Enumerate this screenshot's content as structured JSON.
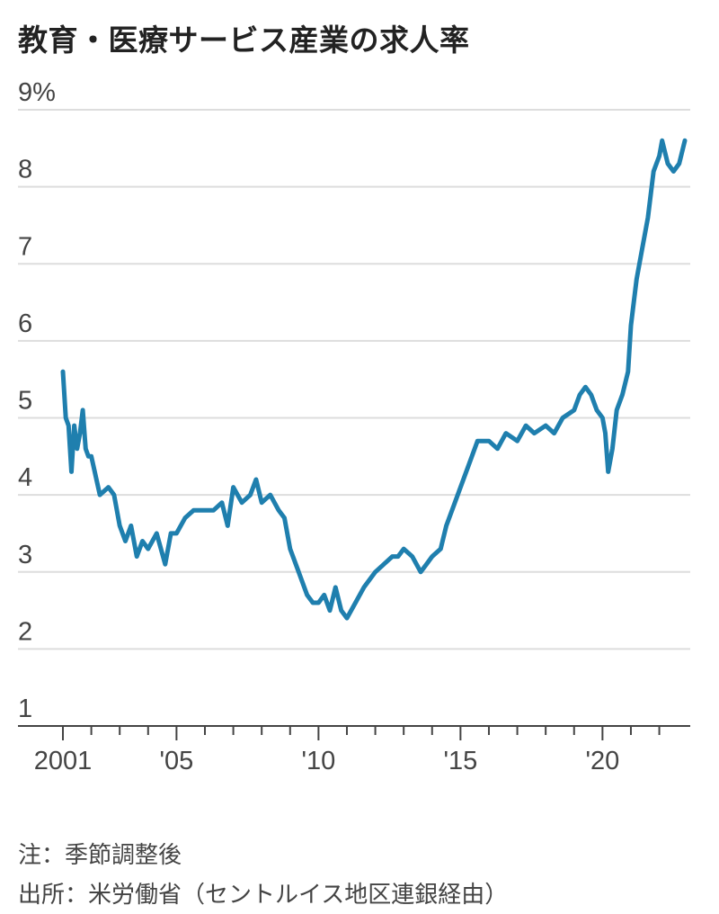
{
  "title": "教育・医療サービス産業の求人率",
  "note": "注：季節調整後",
  "source": "出所：米労働省（セントルイス地区連銀経由）",
  "colors": {
    "line": "#1f7fae",
    "grid": "#dddddd",
    "axis": "#444444"
  },
  "chart_data": {
    "type": "line",
    "title": "教育・医療サービス産業の求人率",
    "xlabel": "",
    "ylabel": "",
    "y_unit": "%",
    "ylim": [
      1,
      9
    ],
    "xlim": [
      2001.0,
      2022.9
    ],
    "yticks": [
      1,
      2,
      3,
      4,
      5,
      6,
      7,
      8,
      9
    ],
    "ytick_labels": [
      "1",
      "2",
      "3",
      "4",
      "5",
      "6",
      "7",
      "8",
      "9%"
    ],
    "xticks": [
      2001,
      2005,
      2010,
      2015,
      2020
    ],
    "xtick_labels": [
      "2001",
      "'05",
      "'10",
      "'15",
      "'20"
    ],
    "grid": true,
    "series": [
      {
        "x": [
          2001.0,
          2001.1,
          2001.2,
          2001.3,
          2001.4,
          2001.5,
          2001.6,
          2001.7,
          2001.8,
          2001.9,
          2002.0,
          2002.3,
          2002.6,
          2002.8,
          2003.0,
          2003.2,
          2003.4,
          2003.6,
          2003.8,
          2004.0,
          2004.3,
          2004.6,
          2004.8,
          2005.0,
          2005.3,
          2005.6,
          2006.0,
          2006.3,
          2006.6,
          2006.8,
          2007.0,
          2007.3,
          2007.6,
          2007.8,
          2008.0,
          2008.3,
          2008.6,
          2008.8,
          2009.0,
          2009.3,
          2009.6,
          2009.8,
          2010.0,
          2010.2,
          2010.4,
          2010.6,
          2010.8,
          2011.0,
          2011.3,
          2011.6,
          2012.0,
          2012.3,
          2012.6,
          2012.8,
          2013.0,
          2013.3,
          2013.6,
          2013.8,
          2014.0,
          2014.3,
          2014.5,
          2014.8,
          2015.0,
          2015.3,
          2015.6,
          2016.0,
          2016.3,
          2016.6,
          2017.0,
          2017.3,
          2017.6,
          2018.0,
          2018.3,
          2018.6,
          2019.0,
          2019.2,
          2019.4,
          2019.6,
          2019.8,
          2020.0,
          2020.1,
          2020.2,
          2020.35,
          2020.5,
          2020.7,
          2020.9,
          2021.0,
          2021.2,
          2021.4,
          2021.6,
          2021.8,
          2022.0,
          2022.1,
          2022.3,
          2022.5,
          2022.7,
          2022.9
        ],
        "values": [
          5.6,
          5.0,
          4.9,
          4.3,
          4.9,
          4.6,
          4.8,
          5.1,
          4.6,
          4.5,
          4.5,
          4.0,
          4.1,
          4.0,
          3.6,
          3.4,
          3.6,
          3.2,
          3.4,
          3.3,
          3.5,
          3.1,
          3.5,
          3.5,
          3.7,
          3.8,
          3.8,
          3.8,
          3.9,
          3.6,
          4.1,
          3.9,
          4.0,
          4.2,
          3.9,
          4.0,
          3.8,
          3.7,
          3.3,
          3.0,
          2.7,
          2.6,
          2.6,
          2.7,
          2.5,
          2.8,
          2.5,
          2.4,
          2.6,
          2.8,
          3.0,
          3.1,
          3.2,
          3.2,
          3.3,
          3.2,
          3.0,
          3.1,
          3.2,
          3.3,
          3.6,
          3.9,
          4.1,
          4.4,
          4.7,
          4.7,
          4.6,
          4.8,
          4.7,
          4.9,
          4.8,
          4.9,
          4.8,
          5.0,
          5.1,
          5.3,
          5.4,
          5.3,
          5.1,
          5.0,
          4.8,
          4.3,
          4.6,
          5.1,
          5.3,
          5.6,
          6.2,
          6.8,
          7.2,
          7.6,
          8.2,
          8.4,
          8.6,
          8.3,
          8.2,
          8.3,
          8.6
        ]
      }
    ]
  }
}
